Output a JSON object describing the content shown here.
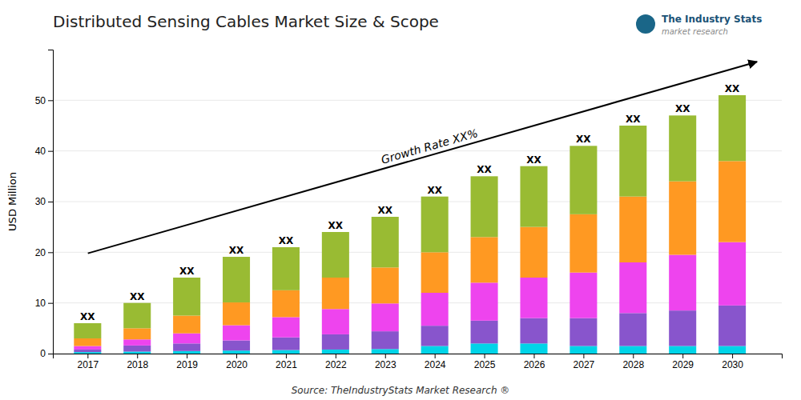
{
  "chart_data": {
    "type": "bar",
    "stacked": true,
    "title": "Distributed Sensing Cables Market Size & Scope",
    "ylabel": "USD Million",
    "source": "Source: TheIndustryStats Market Research ®",
    "logo_title": "The Industry Stats",
    "logo_subtitle": "market research",
    "annotation": "Growth Rate XX%",
    "x": [
      2017,
      2018,
      2019,
      2020,
      2021,
      2022,
      2023,
      2024,
      2025,
      2026,
      2027,
      2028,
      2029,
      2030
    ],
    "xlim": [
      2016.3,
      2031.0
    ],
    "xticks": [
      2017,
      2018,
      2019,
      2020,
      2021,
      2022,
      2023,
      2024,
      2025,
      2026,
      2027,
      2028,
      2029,
      2030
    ],
    "series": [
      {
        "color": "#00d4e8",
        "values": [
          0.3,
          0.4,
          0.5,
          0.6,
          0.7,
          0.8,
          0.9,
          1.5,
          2.0,
          2.0,
          1.5,
          1.5,
          1.5,
          1.5
        ]
      },
      {
        "color": "#8855cc",
        "values": [
          0.5,
          1.2,
          1.5,
          2.0,
          2.5,
          3.0,
          3.5,
          4.0,
          4.5,
          5.0,
          5.5,
          6.5,
          7.0,
          8.0
        ]
      },
      {
        "color": "#ee44ee",
        "values": [
          0.7,
          1.2,
          2.0,
          3.0,
          4.0,
          5.0,
          5.5,
          6.5,
          7.5,
          8.0,
          9.0,
          10.0,
          11.0,
          12.5
        ]
      },
      {
        "color": "#ff9922",
        "values": [
          1.5,
          2.2,
          3.5,
          4.5,
          5.3,
          6.2,
          7.1,
          8.0,
          9.0,
          10.0,
          11.5,
          13.0,
          14.5,
          16.0
        ]
      },
      {
        "color": "#99bb33",
        "values": [
          3.0,
          5.0,
          7.5,
          9.0,
          8.5,
          9.0,
          10.0,
          11.0,
          12.0,
          12.0,
          13.5,
          14.0,
          13.0,
          13.0
        ]
      }
    ],
    "bar_labels": [
      "XX",
      "XX",
      "XX",
      "XX",
      "XX",
      "XX",
      "XX",
      "XX",
      "XX",
      "XX",
      "XX",
      "XX",
      "XX",
      "XX"
    ],
    "ylim": [
      0,
      60
    ],
    "yticks": [
      0,
      10,
      20,
      30,
      40,
      50
    ],
    "grid": true
  }
}
